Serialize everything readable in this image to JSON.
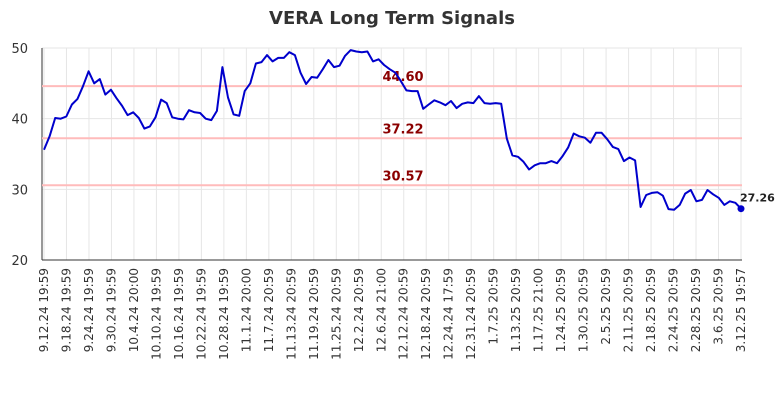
{
  "chart_data": {
    "type": "line",
    "title": "VERA Long Term Signals",
    "xlabel": "",
    "ylabel": "",
    "ylim": [
      20,
      50
    ],
    "yticks": [
      20,
      30,
      40,
      50
    ],
    "grid": true,
    "line_color": "#0000cc",
    "level_color": "#ffbbbb",
    "level_label_color": "#8b0000",
    "x_tick_labels": [
      "9.12.24 19:59",
      "9.18.24 19:59",
      "9.24.24 19:59",
      "9.30.24 19:59",
      "10.4.24 20:00",
      "10.10.24 19:59",
      "10.16.24 19:59",
      "10.22.24 19:59",
      "10.28.24 19:59",
      "11.1.24 20:00",
      "11.7.24 20:59",
      "11.13.24 20:59",
      "11.19.24 20:59",
      "11.25.24 20:59",
      "12.2.24 20:59",
      "12.6.24 21:00",
      "12.12.24 20:59",
      "12.18.24 20:59",
      "12.24.24 17:59",
      "12.31.24 20:59",
      "1.7.25 20:59",
      "1.13.25 20:59",
      "1.17.25 21:00",
      "1.24.25 20:59",
      "1.30.25 20:59",
      "2.5.25 20:59",
      "2.11.25 20:59",
      "2.18.25 20:59",
      "2.24.25 20:59",
      "2.28.25 20:59",
      "3.6.25 20:59",
      "3.12.25 19:57"
    ],
    "levels": [
      {
        "value": 44.6,
        "label": "44.60"
      },
      {
        "value": 37.22,
        "label": "37.22"
      },
      {
        "value": 30.57,
        "label": "30.57"
      }
    ],
    "last_label": "27.26",
    "series": [
      {
        "values": [
          35.6,
          37.5,
          40.1,
          40.0,
          40.3,
          42.0,
          42.8,
          44.6,
          46.7,
          45.0,
          45.6,
          43.4,
          44.1,
          42.9,
          41.8,
          40.5,
          40.9,
          40.1,
          38.6,
          38.9,
          40.2,
          42.7,
          42.2,
          40.2,
          40.0,
          39.9,
          41.2,
          40.9,
          40.8,
          40.0,
          39.8,
          41.1,
          47.3,
          43.0,
          40.6,
          40.4,
          43.9,
          45.0,
          47.8,
          48.0,
          49.0,
          48.1,
          48.6,
          48.6,
          49.4,
          49.0,
          46.5,
          44.9,
          45.9,
          45.8,
          47.0,
          48.3,
          47.3,
          47.5,
          48.9,
          49.7,
          49.5,
          49.4,
          49.5,
          48.1,
          48.4,
          47.6,
          47.0,
          46.5,
          45.3,
          44.0,
          43.9,
          43.9,
          41.4,
          42.0,
          42.6,
          42.3,
          41.9,
          42.5,
          41.5,
          42.1,
          42.3,
          42.2,
          43.2,
          42.2,
          42.1,
          42.2,
          42.1,
          37.2,
          34.8,
          34.6,
          33.9,
          32.8,
          33.4,
          33.7,
          33.7,
          34.0,
          33.7,
          34.7,
          35.9,
          37.9,
          37.5,
          37.3,
          36.6,
          38.0,
          38.0,
          37.1,
          36.0,
          35.7,
          34.0,
          34.5,
          34.1,
          27.5,
          29.2,
          29.5,
          29.6,
          29.1,
          27.2,
          27.1,
          27.8,
          29.4,
          29.9,
          28.3,
          28.5,
          29.9,
          29.3,
          28.8,
          27.8,
          28.3,
          28.1,
          27.26
        ]
      }
    ]
  }
}
